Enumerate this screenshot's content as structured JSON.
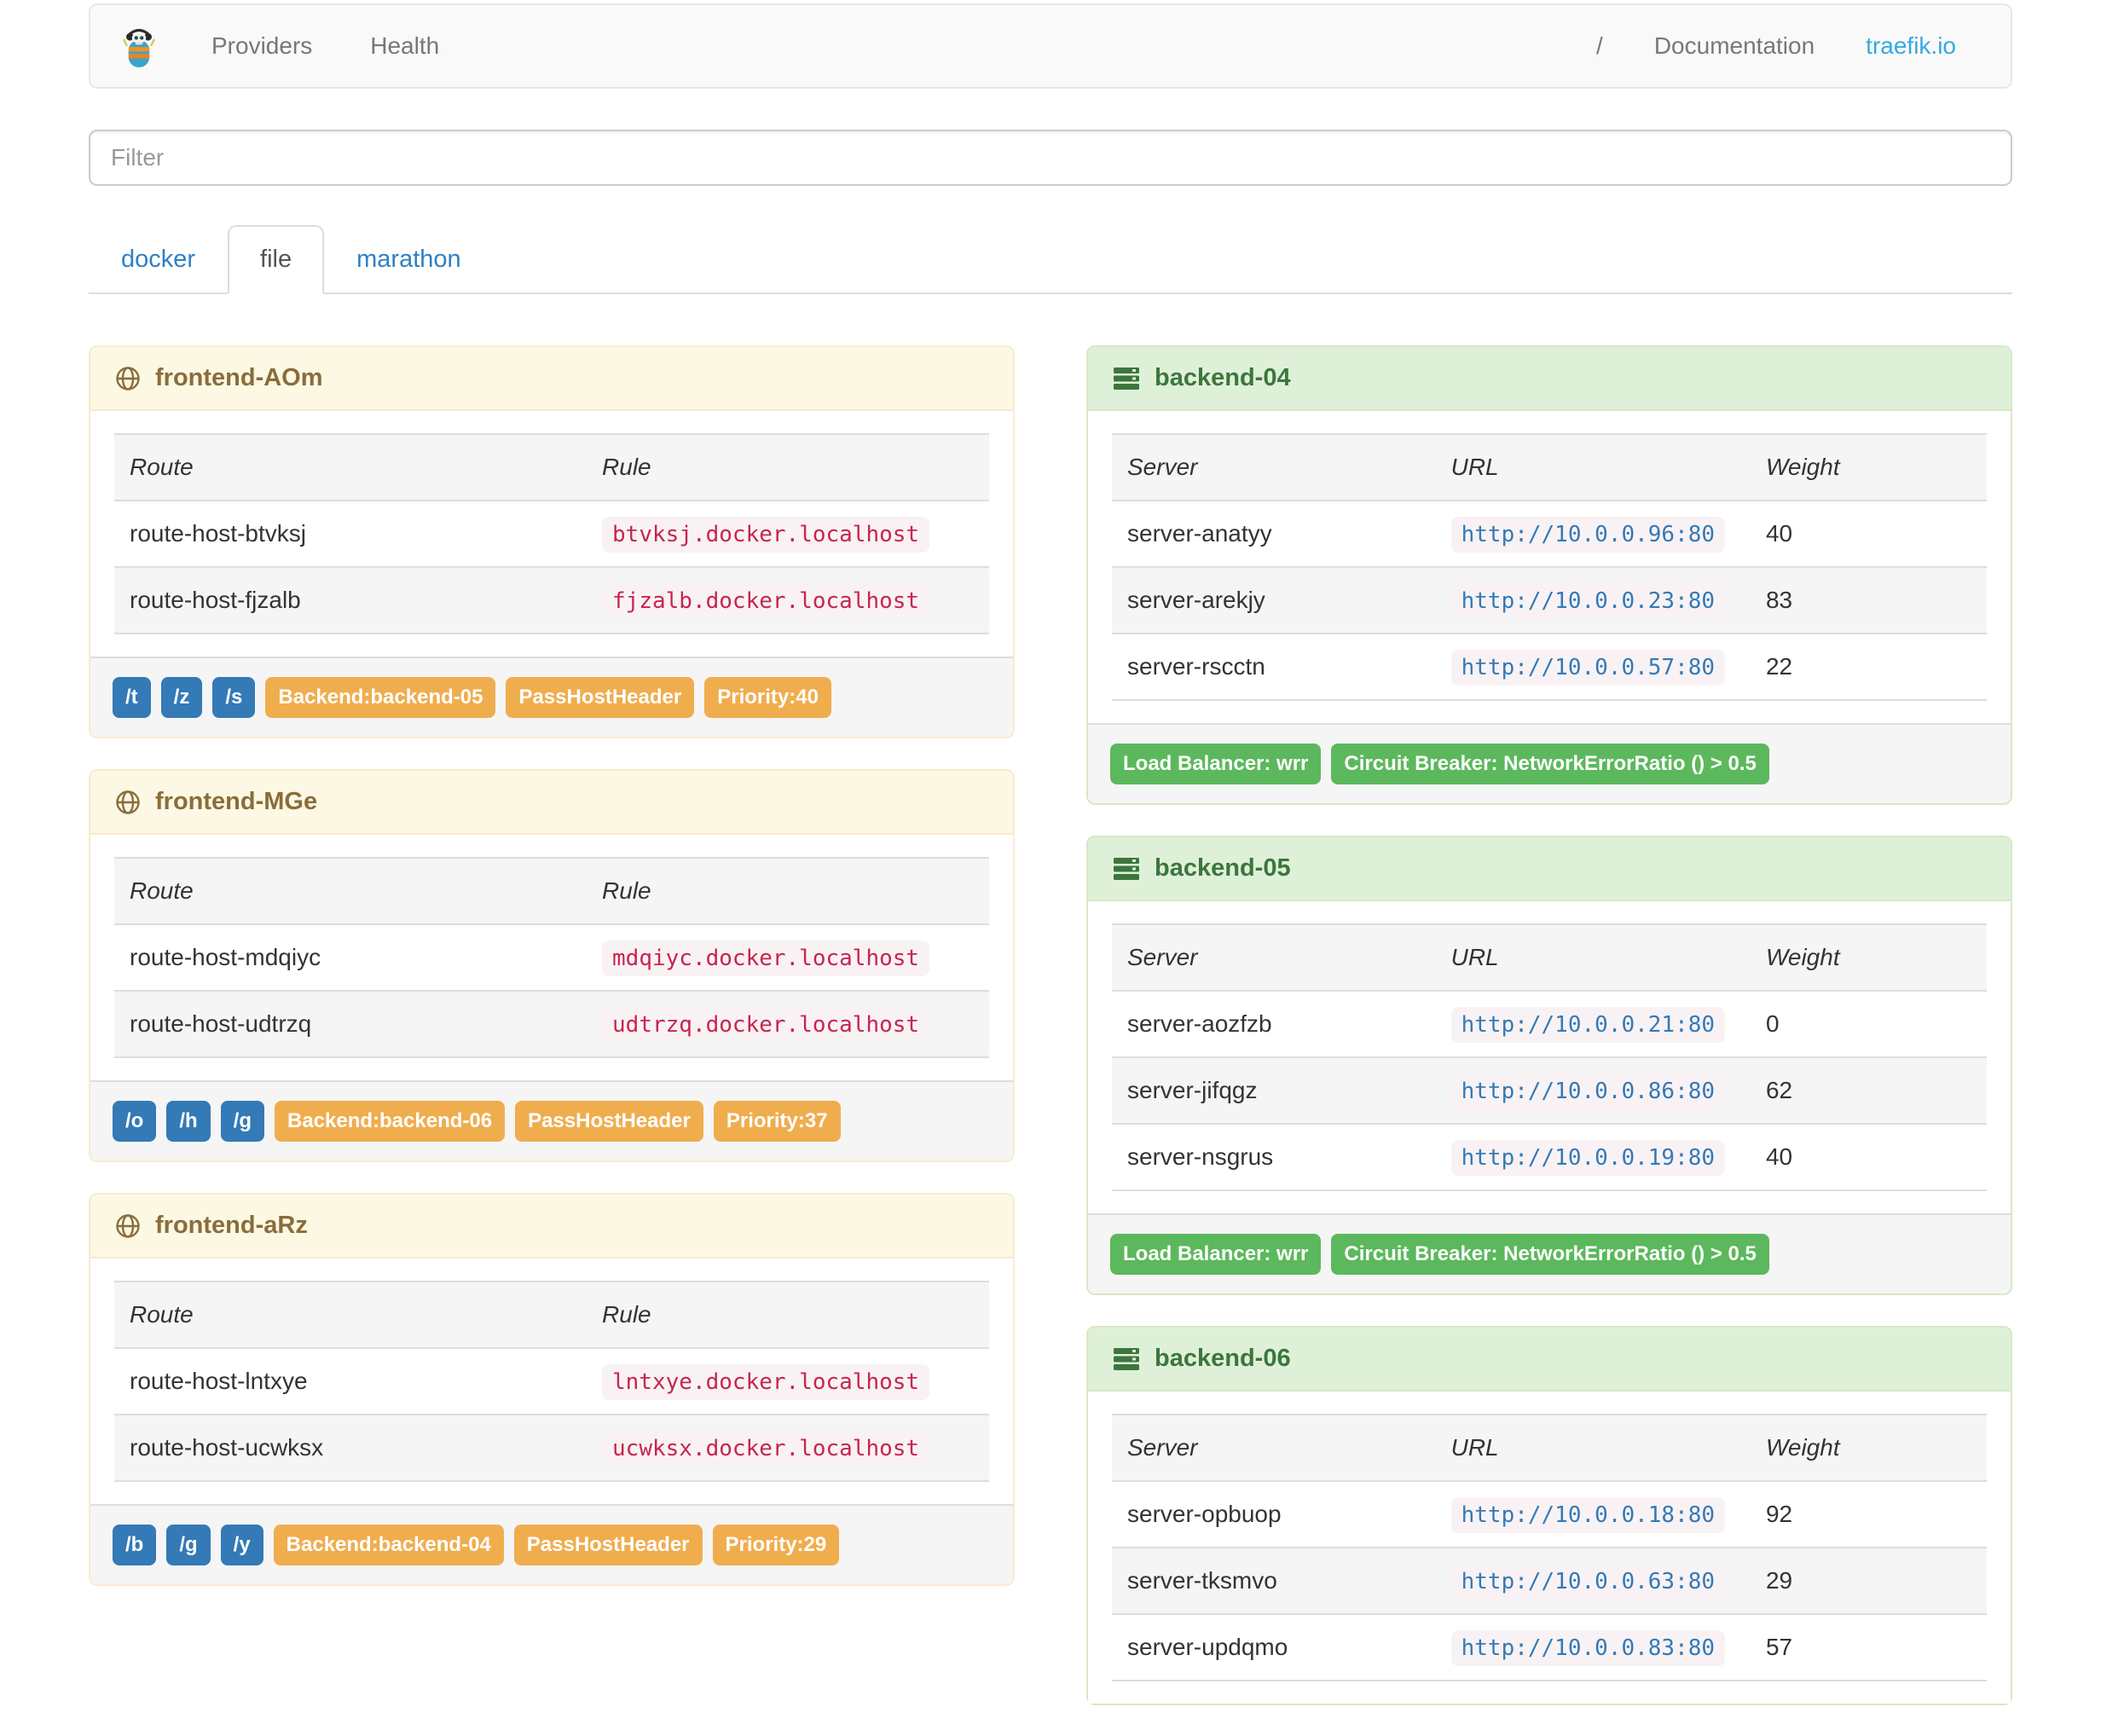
{
  "navbar": {
    "brand_icon": "traefik-logo",
    "items": [
      {
        "label": "Providers"
      },
      {
        "label": "Health"
      }
    ],
    "right": [
      {
        "label": "/"
      },
      {
        "label": "Documentation"
      },
      {
        "label": "traefik.io"
      }
    ]
  },
  "filter": {
    "placeholder": "Filter",
    "value": ""
  },
  "tabs": [
    {
      "label": "docker",
      "active": false
    },
    {
      "label": "file",
      "active": true
    },
    {
      "label": "marathon",
      "active": false
    }
  ],
  "frontend_table_headers": [
    "Route",
    "Rule"
  ],
  "backend_table_headers": [
    "Server",
    "URL",
    "Weight"
  ],
  "frontends": [
    {
      "name": "frontend-AOm",
      "routes": [
        {
          "route": "route-host-btvksj",
          "rule": "btvksj.docker.localhost"
        },
        {
          "route": "route-host-fjzalb",
          "rule": "fjzalb.docker.localhost"
        }
      ],
      "entry_points": [
        "/t",
        "/z",
        "/s"
      ],
      "badges": [
        "Backend:backend-05",
        "PassHostHeader",
        "Priority:40"
      ]
    },
    {
      "name": "frontend-MGe",
      "routes": [
        {
          "route": "route-host-mdqiyc",
          "rule": "mdqiyc.docker.localhost"
        },
        {
          "route": "route-host-udtrzq",
          "rule": "udtrzq.docker.localhost"
        }
      ],
      "entry_points": [
        "/o",
        "/h",
        "/g"
      ],
      "badges": [
        "Backend:backend-06",
        "PassHostHeader",
        "Priority:37"
      ]
    },
    {
      "name": "frontend-aRz",
      "routes": [
        {
          "route": "route-host-lntxye",
          "rule": "lntxye.docker.localhost"
        },
        {
          "route": "route-host-ucwksx",
          "rule": "ucwksx.docker.localhost"
        }
      ],
      "entry_points": [
        "/b",
        "/g",
        "/y"
      ],
      "badges": [
        "Backend:backend-04",
        "PassHostHeader",
        "Priority:29"
      ]
    }
  ],
  "backends": [
    {
      "name": "backend-04",
      "servers": [
        {
          "server": "server-anatyy",
          "url": "http://10.0.0.96:80",
          "weight": "40"
        },
        {
          "server": "server-arekjy",
          "url": "http://10.0.0.23:80",
          "weight": "83"
        },
        {
          "server": "server-rscctn",
          "url": "http://10.0.0.57:80",
          "weight": "22"
        }
      ],
      "badges": [
        "Load Balancer: wrr",
        "Circuit Breaker: NetworkErrorRatio () > 0.5"
      ]
    },
    {
      "name": "backend-05",
      "servers": [
        {
          "server": "server-aozfzb",
          "url": "http://10.0.0.21:80",
          "weight": "0"
        },
        {
          "server": "server-jifqgz",
          "url": "http://10.0.0.86:80",
          "weight": "62"
        },
        {
          "server": "server-nsgrus",
          "url": "http://10.0.0.19:80",
          "weight": "40"
        }
      ],
      "badges": [
        "Load Balancer: wrr",
        "Circuit Breaker: NetworkErrorRatio () > 0.5"
      ]
    },
    {
      "name": "backend-06",
      "servers": [
        {
          "server": "server-opbuop",
          "url": "http://10.0.0.18:80",
          "weight": "92"
        },
        {
          "server": "server-tksmvo",
          "url": "http://10.0.0.63:80",
          "weight": "29"
        },
        {
          "server": "server-updqmo",
          "url": "http://10.0.0.83:80",
          "weight": "57"
        }
      ],
      "badges": []
    }
  ],
  "colors": {
    "brand_cyan": "#36a9e1",
    "link_blue": "#2e80c6",
    "warning_bg": "#fcf8e3",
    "warning_text": "#8a6d3b",
    "warning_border": "#faebcc",
    "success_bg": "#dff0d8",
    "success_text": "#3c763d",
    "success_border": "#d6e9c6",
    "label_primary": "#337ab7",
    "label_warning": "#f0ad4e",
    "label_success": "#5cb85c",
    "code_text": "#c7254e",
    "code_url_text": "#337ab7",
    "code_bg": "#f9f2f4"
  }
}
